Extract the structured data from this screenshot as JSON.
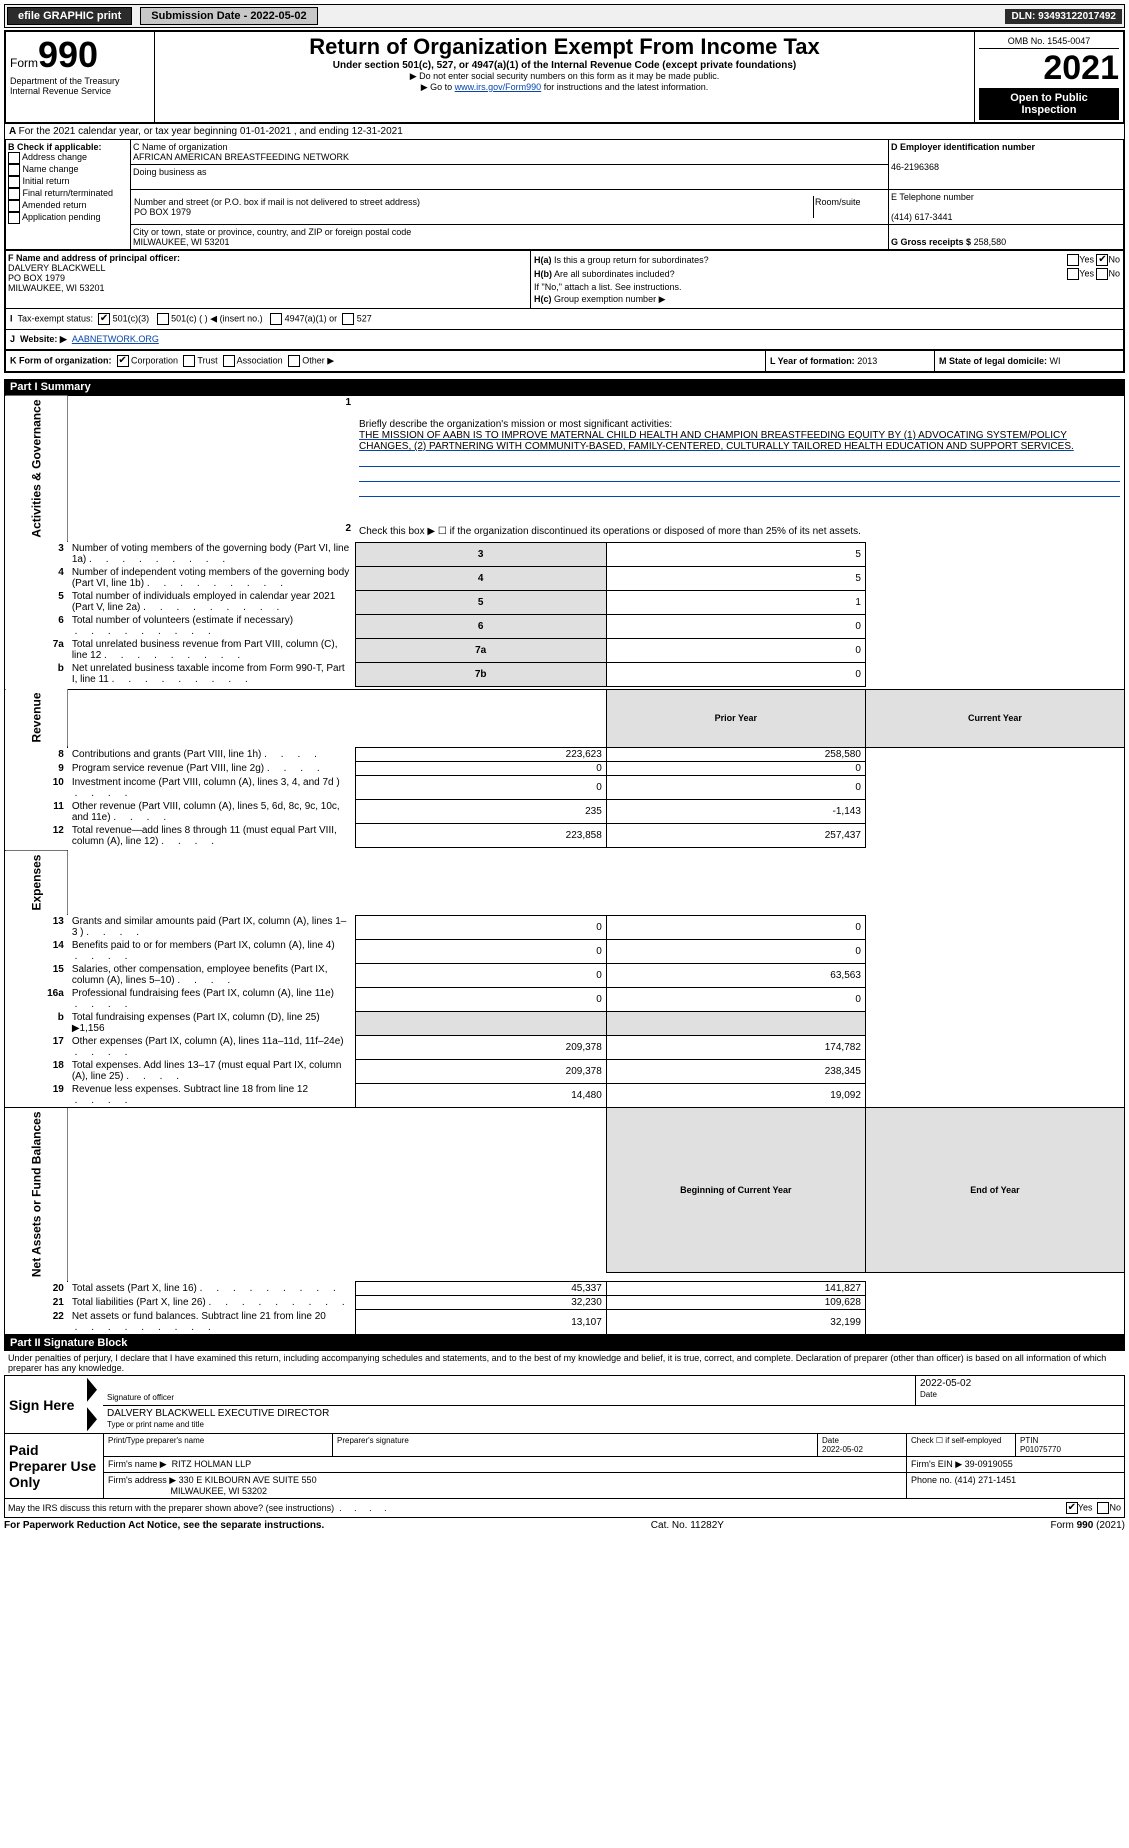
{
  "topbar": {
    "efile": "efile GRAPHIC print",
    "submission_label": "Submission Date - 2022-05-02",
    "dln": "DLN: 93493122017492"
  },
  "header": {
    "form_label": "Form",
    "form_number": "990",
    "title": "Return of Organization Exempt From Income Tax",
    "subtitle": "Under section 501(c), 527, or 4947(a)(1) of the Internal Revenue Code (except private foundations)",
    "note1": "▶ Do not enter social security numbers on this form as it may be made public.",
    "note2_pre": "▶ Go to ",
    "note2_link": "www.irs.gov/Form990",
    "note2_post": " for instructions and the latest information.",
    "dept": "Department of the Treasury",
    "irs": "Internal Revenue Service",
    "omb": "OMB No. 1545-0047",
    "year": "2021",
    "open_public": "Open to Public Inspection"
  },
  "periodA": "For the 2021 calendar year, or tax year beginning 01-01-2021     , and ending 12-31-2021",
  "boxB": {
    "label": "B Check if applicable:",
    "items": [
      "Address change",
      "Name change",
      "Initial return",
      "Final return/terminated",
      "Amended return",
      "Application pending"
    ]
  },
  "boxC": {
    "name_label": "C Name of organization",
    "name": "AFRICAN AMERICAN BREASTFEEDING NETWORK",
    "dba_label": "Doing business as",
    "dba": "",
    "street_label": "Number and street (or P.O. box if mail is not delivered to street address)",
    "room_label": "Room/suite",
    "street": "PO BOX 1979",
    "city_label": "City or town, state or province, country, and ZIP or foreign postal code",
    "city": "MILWAUKEE, WI  53201"
  },
  "boxD": {
    "label": "D Employer identification number",
    "ein": "46-2196368"
  },
  "boxE": {
    "label": "E Telephone number",
    "phone": "(414) 617-3441"
  },
  "boxG": {
    "label": "G Gross receipts $",
    "value": "258,580"
  },
  "boxF": {
    "label": "F Name and address of principal officer:",
    "name": "DALVERY BLACKWELL",
    "street": "PO BOX 1979",
    "city": "MILWAUKEE, WI  53201"
  },
  "boxH": {
    "a_label": "Is this a group return for subordinates?",
    "b_label": "Are all subordinates included?",
    "b_note": "If \"No,\" attach a list. See instructions.",
    "c_label": "Group exemption number ▶",
    "ha_yes": false,
    "ha_no": true,
    "hb_yes": false,
    "hb_no": false
  },
  "boxI": {
    "label": "Tax-exempt status:",
    "opt1": "501(c)(3)",
    "opt2": "501(c) (   ) ◀ (insert no.)",
    "opt3": "4947(a)(1) or",
    "opt4": "527"
  },
  "boxJ": {
    "label": "Website: ▶",
    "value": "AABNETWORK.ORG"
  },
  "boxK": {
    "label": "K Form of organization:",
    "opts": [
      "Corporation",
      "Trust",
      "Association",
      "Other ▶"
    ]
  },
  "boxL": {
    "label": "L Year of formation:",
    "value": "2013"
  },
  "boxM": {
    "label": "M State of legal domicile:",
    "value": "WI"
  },
  "part1": {
    "header": "Part I      Summary",
    "line1_label": "Briefly describe the organization's mission or most significant activities:",
    "mission": "THE MISSION OF AABN IS TO IMPROVE MATERNAL CHILD HEALTH AND CHAMPION BREASTFEEDING EQUITY BY (1) ADVOCATING SYSTEM/POLICY CHANGES, (2) PARTNERING WITH COMMUNITY-BASED, FAMILY-CENTERED, CULTURALLY TAILORED HEALTH EDUCATION AND SUPPORT SERVICES.",
    "line2": "Check this box ▶ ☐ if the organization discontinued its operations or disposed of more than 25% of its net assets.",
    "gov_rows": [
      {
        "n": "3",
        "t": "Number of voting members of the governing body (Part VI, line 1a)",
        "box": "3",
        "v": "5"
      },
      {
        "n": "4",
        "t": "Number of independent voting members of the governing body (Part VI, line 1b)",
        "box": "4",
        "v": "5"
      },
      {
        "n": "5",
        "t": "Total number of individuals employed in calendar year 2021 (Part V, line 2a)",
        "box": "5",
        "v": "1"
      },
      {
        "n": "6",
        "t": "Total number of volunteers (estimate if necessary)",
        "box": "6",
        "v": "0"
      },
      {
        "n": "7a",
        "t": "Total unrelated business revenue from Part VIII, column (C), line 12",
        "box": "7a",
        "v": "0"
      },
      {
        "n": "b",
        "t": "Net unrelated business taxable income from Form 990-T, Part I, line 11",
        "box": "7b",
        "v": "0"
      }
    ],
    "prior_label": "Prior Year",
    "current_label": "Current Year",
    "rev_rows": [
      {
        "n": "8",
        "t": "Contributions and grants (Part VIII, line 1h)",
        "py": "223,623",
        "cy": "258,580"
      },
      {
        "n": "9",
        "t": "Program service revenue (Part VIII, line 2g)",
        "py": "0",
        "cy": "0"
      },
      {
        "n": "10",
        "t": "Investment income (Part VIII, column (A), lines 3, 4, and 7d )",
        "py": "0",
        "cy": "0"
      },
      {
        "n": "11",
        "t": "Other revenue (Part VIII, column (A), lines 5, 6d, 8c, 9c, 10c, and 11e)",
        "py": "235",
        "cy": "-1,143"
      },
      {
        "n": "12",
        "t": "Total revenue—add lines 8 through 11 (must equal Part VIII, column (A), line 12)",
        "py": "223,858",
        "cy": "257,437"
      }
    ],
    "exp_rows": [
      {
        "n": "13",
        "t": "Grants and similar amounts paid (Part IX, column (A), lines 1–3 )",
        "py": "0",
        "cy": "0"
      },
      {
        "n": "14",
        "t": "Benefits paid to or for members (Part IX, column (A), line 4)",
        "py": "0",
        "cy": "0"
      },
      {
        "n": "15",
        "t": "Salaries, other compensation, employee benefits (Part IX, column (A), lines 5–10)",
        "py": "0",
        "cy": "63,563"
      },
      {
        "n": "16a",
        "t": "Professional fundraising fees (Part IX, column (A), line 11e)",
        "py": "0",
        "cy": "0"
      },
      {
        "n": "b",
        "t": "Total fundraising expenses (Part IX, column (D), line 25) ▶1,156",
        "py": "",
        "cy": "",
        "shade": true
      },
      {
        "n": "17",
        "t": "Other expenses (Part IX, column (A), lines 11a–11d, 11f–24e)",
        "py": "209,378",
        "cy": "174,782"
      },
      {
        "n": "18",
        "t": "Total expenses. Add lines 13–17 (must equal Part IX, column (A), line 25)",
        "py": "209,378",
        "cy": "238,345"
      },
      {
        "n": "19",
        "t": "Revenue less expenses. Subtract line 18 from line 12",
        "py": "14,480",
        "cy": "19,092"
      }
    ],
    "begin_label": "Beginning of Current Year",
    "end_label": "End of Year",
    "na_rows": [
      {
        "n": "20",
        "t": "Total assets (Part X, line 16)",
        "py": "45,337",
        "cy": "141,827"
      },
      {
        "n": "21",
        "t": "Total liabilities (Part X, line 26)",
        "py": "32,230",
        "cy": "109,628"
      },
      {
        "n": "22",
        "t": "Net assets or fund balances. Subtract line 21 from line 20",
        "py": "13,107",
        "cy": "32,199"
      }
    ],
    "vert_gov": "Activities & Governance",
    "vert_rev": "Revenue",
    "vert_exp": "Expenses",
    "vert_na": "Net Assets or Fund Balances"
  },
  "part2": {
    "header": "Part II     Signature Block",
    "declaration": "Under penalties of perjury, I declare that I have examined this return, including accompanying schedules and statements, and to the best of my knowledge and belief, it is true, correct, and complete. Declaration of preparer (other than officer) is based on all information of which preparer has any knowledge.",
    "sign_here": "Sign Here",
    "sig_officer": "Signature of officer",
    "sig_date": "2022-05-02",
    "date_label": "Date",
    "officer_name": "DALVERY BLACKWELL  EXECUTIVE DIRECTOR",
    "officer_name_label": "Type or print name and title",
    "paid": "Paid Preparer Use Only",
    "prep_name_label": "Print/Type preparer's name",
    "prep_sig_label": "Preparer's signature",
    "prep_date_label": "Date",
    "prep_date": "2022-05-02",
    "check_if": "Check ☐ if self-employed",
    "ptin_label": "PTIN",
    "ptin": "P01075770",
    "firm_name_label": "Firm's name     ▶",
    "firm_name": "RITZ HOLMAN LLP",
    "firm_ein_label": "Firm's EIN ▶",
    "firm_ein": "39-0919055",
    "firm_addr_label": "Firm's address ▶",
    "firm_addr1": "330 E KILBOURN AVE SUITE 550",
    "firm_addr2": "MILWAUKEE, WI  53202",
    "phone_label": "Phone no.",
    "phone": "(414) 271-1451",
    "discuss": "May the IRS discuss this return with the preparer shown above? (see instructions)",
    "discuss_yes": true,
    "discuss_no": false
  },
  "footer": {
    "left": "For Paperwork Reduction Act Notice, see the separate instructions.",
    "mid": "Cat. No. 11282Y",
    "right": "Form 990 (2021)"
  }
}
